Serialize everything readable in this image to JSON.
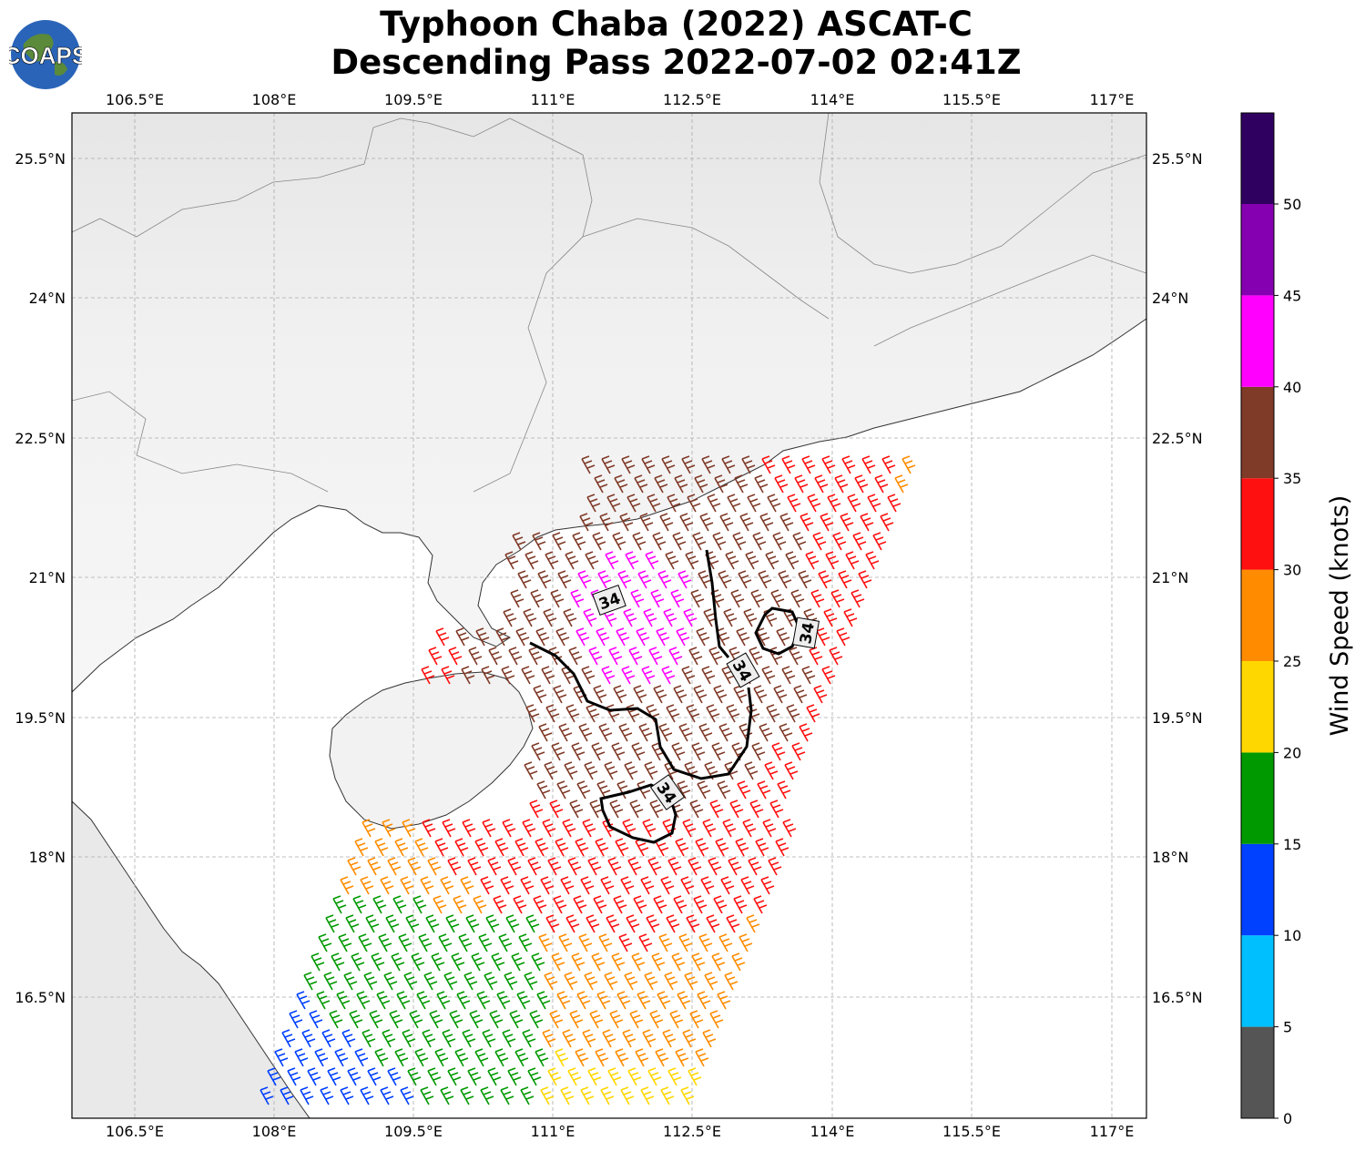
{
  "header": {
    "title_line1": "Typhoon Chaba (2022) ASCAT-C",
    "title_line2": "Descending Pass 2022-07-02 02:41Z",
    "logo_text": "COAPS"
  },
  "map": {
    "lon_ticks": [
      "106.5°E",
      "108°E",
      "109.5°E",
      "111°E",
      "112.5°E",
      "114°E",
      "115.5°E",
      "117°E"
    ],
    "lat_ticks": [
      "25.5°N",
      "24°N",
      "22.5°N",
      "21°N",
      "19.5°N",
      "18°N",
      "16.5°N"
    ],
    "contour_label": "34",
    "contour_level_knots": 34
  },
  "colorbar": {
    "title": "Wind Speed (knots)",
    "tick_labels": [
      "0",
      "5",
      "10",
      "15",
      "20",
      "25",
      "30",
      "35",
      "40",
      "45",
      "50"
    ],
    "colors": [
      "#555555",
      "#00bfff",
      "#0040ff",
      "#009900",
      "#ffd700",
      "#ff8c00",
      "#ff1010",
      "#803a28",
      "#ff00ff",
      "#8400b0",
      "#300060"
    ]
  }
}
